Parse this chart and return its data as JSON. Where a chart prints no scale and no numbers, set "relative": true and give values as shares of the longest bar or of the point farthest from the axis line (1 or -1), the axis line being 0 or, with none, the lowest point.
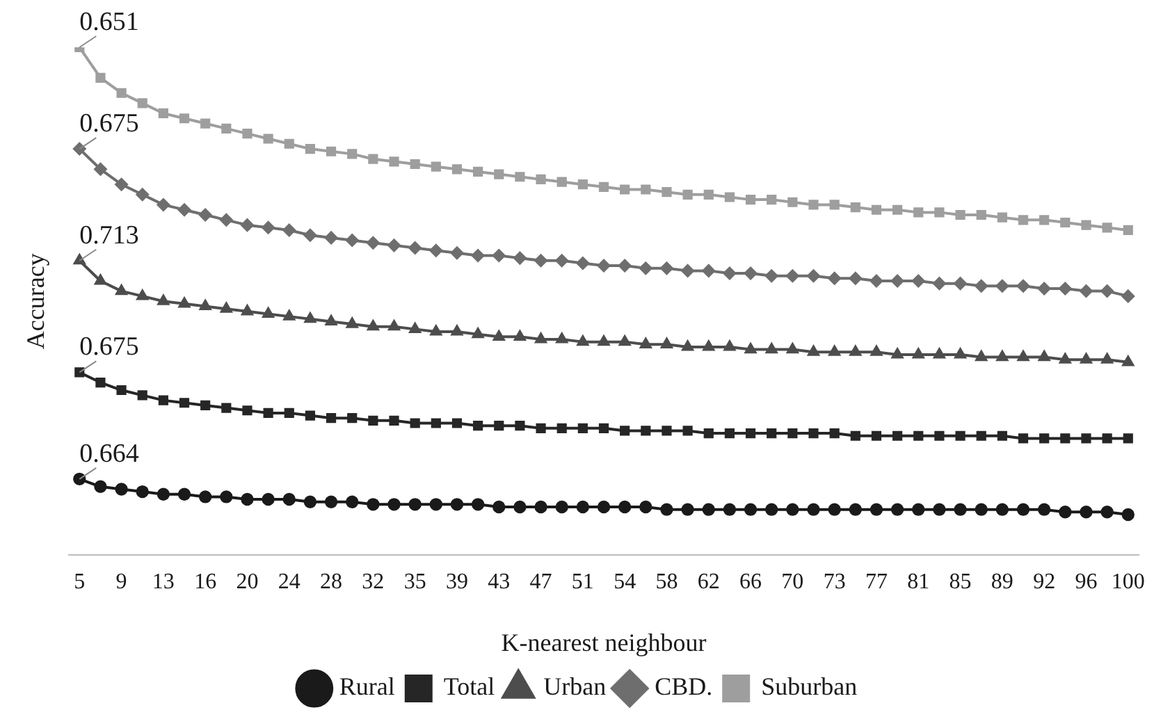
{
  "chart_data": {
    "type": "line",
    "relative": true,
    "xlabel": "K-nearest neighbour",
    "ylabel": "Accuracy",
    "legend": "bottom",
    "grid": false,
    "line_style": "solid",
    "categories": [
      "5",
      null,
      "9",
      null,
      "13",
      null,
      "16",
      null,
      "20",
      null,
      "24",
      null,
      "28",
      null,
      "32",
      null,
      "35",
      null,
      "39",
      null,
      "43",
      null,
      "47",
      null,
      "51",
      null,
      "54",
      null,
      "58",
      null,
      "62",
      null,
      "66",
      null,
      "70",
      null,
      "73",
      null,
      "77",
      null,
      "81",
      null,
      "85",
      null,
      "89",
      null,
      "92",
      null,
      "96",
      null,
      "100"
    ],
    "series": [
      {
        "name": "Rural",
        "color": "#1a1a1a",
        "marker": "circle",
        "values": [
          0.15,
          0.135,
          0.13,
          0.125,
          0.12,
          0.12,
          0.115,
          0.115,
          0.11,
          0.11,
          0.11,
          0.105,
          0.105,
          0.105,
          0.1,
          0.1,
          0.1,
          0.1,
          0.1,
          0.1,
          0.095,
          0.095,
          0.095,
          0.095,
          0.095,
          0.095,
          0.095,
          0.095,
          0.09,
          0.09,
          0.09,
          0.09,
          0.09,
          0.09,
          0.09,
          0.09,
          0.09,
          0.09,
          0.09,
          0.09,
          0.09,
          0.09,
          0.09,
          0.09,
          0.09,
          0.09,
          0.09,
          0.085,
          0.085,
          0.085,
          0.08
        ]
      },
      {
        "name": "Total",
        "color": "#262626",
        "marker": "square",
        "values": [
          0.36,
          0.34,
          0.325,
          0.315,
          0.305,
          0.3,
          0.295,
          0.29,
          0.285,
          0.28,
          0.28,
          0.275,
          0.27,
          0.27,
          0.265,
          0.265,
          0.26,
          0.26,
          0.26,
          0.255,
          0.255,
          0.255,
          0.25,
          0.25,
          0.25,
          0.25,
          0.245,
          0.245,
          0.245,
          0.245,
          0.24,
          0.24,
          0.24,
          0.24,
          0.24,
          0.24,
          0.24,
          0.235,
          0.235,
          0.235,
          0.235,
          0.235,
          0.235,
          0.235,
          0.235,
          0.23,
          0.23,
          0.23,
          0.23,
          0.23,
          0.23
        ]
      },
      {
        "name": "Urban",
        "color": "#4d4d4d",
        "marker": "triangle",
        "values": [
          0.58,
          0.54,
          0.52,
          0.51,
          0.5,
          0.495,
          0.49,
          0.485,
          0.48,
          0.475,
          0.47,
          0.465,
          0.46,
          0.455,
          0.45,
          0.45,
          0.445,
          0.44,
          0.44,
          0.435,
          0.43,
          0.43,
          0.425,
          0.425,
          0.42,
          0.42,
          0.42,
          0.415,
          0.415,
          0.41,
          0.41,
          0.41,
          0.405,
          0.405,
          0.405,
          0.4,
          0.4,
          0.4,
          0.4,
          0.395,
          0.395,
          0.395,
          0.395,
          0.39,
          0.39,
          0.39,
          0.39,
          0.385,
          0.385,
          0.385,
          0.38
        ]
      },
      {
        "name": "CBD.",
        "color": "#6e6e6e",
        "marker": "diamond",
        "values": [
          0.8,
          0.76,
          0.73,
          0.71,
          0.69,
          0.68,
          0.67,
          0.66,
          0.65,
          0.645,
          0.64,
          0.63,
          0.625,
          0.62,
          0.615,
          0.61,
          0.605,
          0.6,
          0.595,
          0.59,
          0.59,
          0.585,
          0.58,
          0.58,
          0.575,
          0.57,
          0.57,
          0.565,
          0.565,
          0.56,
          0.56,
          0.555,
          0.555,
          0.55,
          0.55,
          0.55,
          0.545,
          0.545,
          0.54,
          0.54,
          0.54,
          0.535,
          0.535,
          0.53,
          0.53,
          0.53,
          0.525,
          0.525,
          0.52,
          0.52,
          0.51
        ]
      },
      {
        "name": "Suburban",
        "color": "#9e9e9e",
        "marker": "square",
        "values": [
          1.0,
          0.94,
          0.91,
          0.89,
          0.87,
          0.86,
          0.85,
          0.84,
          0.83,
          0.82,
          0.81,
          0.8,
          0.795,
          0.79,
          0.78,
          0.775,
          0.77,
          0.765,
          0.76,
          0.755,
          0.75,
          0.745,
          0.74,
          0.735,
          0.73,
          0.725,
          0.72,
          0.72,
          0.715,
          0.71,
          0.71,
          0.705,
          0.7,
          0.7,
          0.695,
          0.69,
          0.69,
          0.685,
          0.68,
          0.68,
          0.675,
          0.675,
          0.67,
          0.67,
          0.665,
          0.66,
          0.66,
          0.655,
          0.65,
          0.645,
          0.64
        ]
      }
    ],
    "annotations": [
      {
        "text": "0.664",
        "x": "5",
        "y": 0.15
      },
      {
        "text": "0.675",
        "x": "5",
        "y": 0.36
      },
      {
        "text": "0.713",
        "x": "5",
        "y": 0.58
      },
      {
        "text": "0.675",
        "x": "5",
        "y": 0.8
      },
      {
        "text": "0.651",
        "x": "5",
        "y": 1.0
      }
    ]
  }
}
